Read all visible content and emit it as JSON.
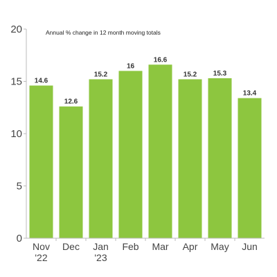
{
  "chart_data": {
    "type": "bar",
    "title": "",
    "subtitle": "Annual % change in 12 month moving totals",
    "xlabel": "",
    "ylabel": "",
    "categories": [
      [
        "Nov",
        "'22"
      ],
      [
        "Dec"
      ],
      [
        "Jan",
        "'23"
      ],
      [
        "Feb"
      ],
      [
        "Mar"
      ],
      [
        "Apr"
      ],
      [
        "May"
      ],
      [
        "Jun"
      ]
    ],
    "values": [
      14.6,
      12.6,
      15.2,
      16,
      16.6,
      15.2,
      15.3,
      13.4
    ],
    "value_labels": [
      "14.6",
      "12.6",
      "15.2",
      "16",
      "16.6",
      "15.2",
      "15.3",
      "13.4"
    ],
    "ylim": [
      0,
      20
    ],
    "yticks": [
      0,
      5,
      10,
      15,
      20
    ],
    "grid": false,
    "bar_color": "#8dc63f",
    "axis_color": "#bbbbbb"
  }
}
